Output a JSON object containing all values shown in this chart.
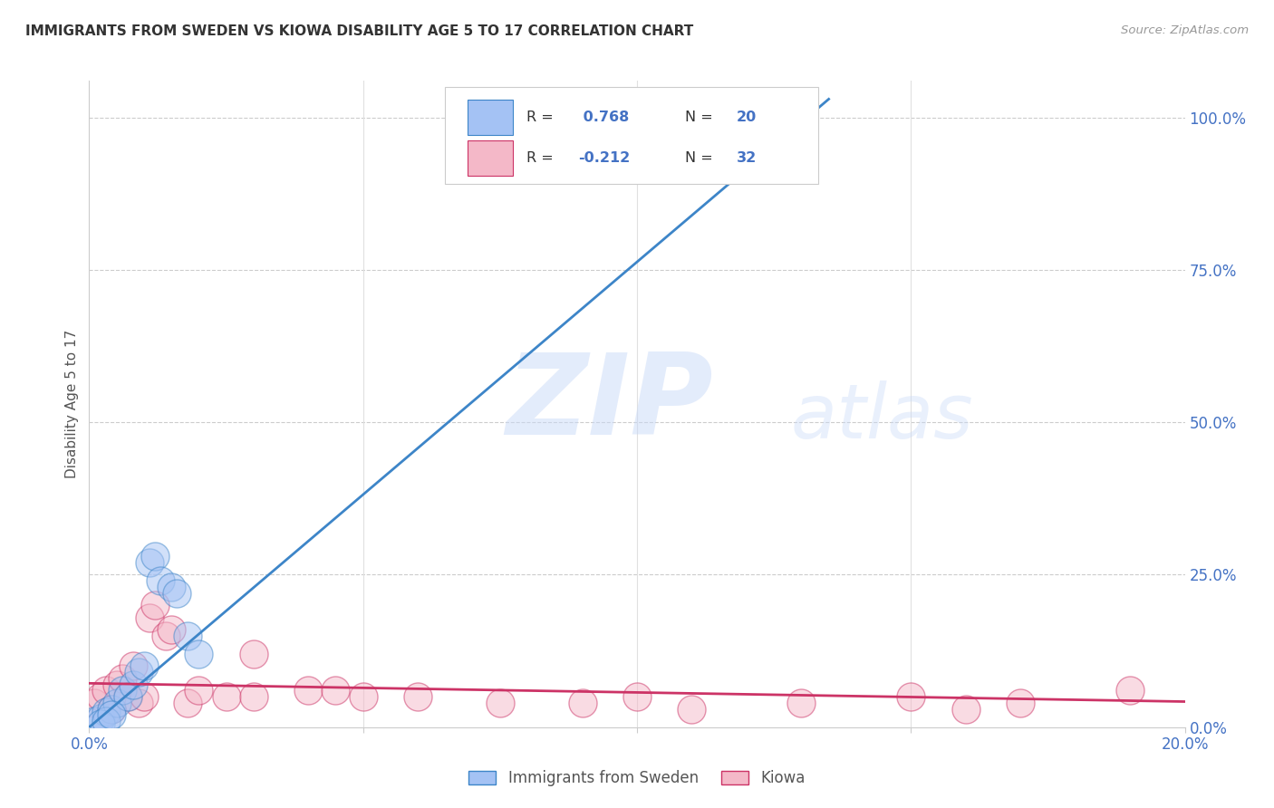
{
  "title": "IMMIGRANTS FROM SWEDEN VS KIOWA DISABILITY AGE 5 TO 17 CORRELATION CHART",
  "source": "Source: ZipAtlas.com",
  "ylabel": "Disability Age 5 to 17",
  "right_yticks": [
    0.0,
    0.25,
    0.5,
    0.75,
    1.0
  ],
  "right_yticklabels": [
    "0.0%",
    "25.0%",
    "50.0%",
    "75.0%",
    "100.0%"
  ],
  "xlim": [
    0.0,
    0.2
  ],
  "ylim": [
    0.0,
    1.06
  ],
  "sweden_R": 0.768,
  "sweden_N": 20,
  "kiowa_R": -0.212,
  "kiowa_N": 32,
  "sweden_color": "#a4c2f4",
  "sweden_edge_color": "#3d85c8",
  "kiowa_color": "#f4b8c8",
  "kiowa_edge_color": "#cc3366",
  "sweden_line_color": "#3d85c8",
  "kiowa_line_color": "#cc3366",
  "background_color": "#ffffff",
  "grid_color": "#cccccc",
  "watermark_zip": "ZIP",
  "watermark_atlas": "atlas",
  "sweden_x": [
    0.001,
    0.002,
    0.003,
    0.004,
    0.005,
    0.006,
    0.007,
    0.008,
    0.009,
    0.01,
    0.011,
    0.012,
    0.013,
    0.015,
    0.016,
    0.018,
    0.02,
    0.002,
    0.003,
    0.004
  ],
  "sweden_y": [
    0.01,
    0.015,
    0.025,
    0.03,
    0.04,
    0.06,
    0.05,
    0.07,
    0.09,
    0.1,
    0.27,
    0.28,
    0.24,
    0.23,
    0.22,
    0.15,
    0.12,
    0.005,
    0.01,
    0.02
  ],
  "kiowa_x": [
    0.001,
    0.002,
    0.003,
    0.004,
    0.005,
    0.006,
    0.007,
    0.008,
    0.009,
    0.01,
    0.011,
    0.012,
    0.014,
    0.015,
    0.018,
    0.02,
    0.025,
    0.03,
    0.04,
    0.05,
    0.06,
    0.075,
    0.09,
    0.1,
    0.11,
    0.13,
    0.15,
    0.16,
    0.17,
    0.19,
    0.03,
    0.045
  ],
  "kiowa_y": [
    0.04,
    0.05,
    0.06,
    0.03,
    0.07,
    0.08,
    0.05,
    0.1,
    0.04,
    0.05,
    0.18,
    0.2,
    0.15,
    0.16,
    0.04,
    0.06,
    0.05,
    0.12,
    0.06,
    0.05,
    0.05,
    0.04,
    0.04,
    0.05,
    0.03,
    0.04,
    0.05,
    0.03,
    0.04,
    0.06,
    0.05,
    0.06
  ],
  "sweden_line_x0": 0.0,
  "sweden_line_y0": 0.0,
  "sweden_line_x1": 0.135,
  "sweden_line_y1": 1.03,
  "kiowa_line_x0": 0.0,
  "kiowa_line_y0": 0.072,
  "kiowa_line_x1": 0.2,
  "kiowa_line_y1": 0.042
}
